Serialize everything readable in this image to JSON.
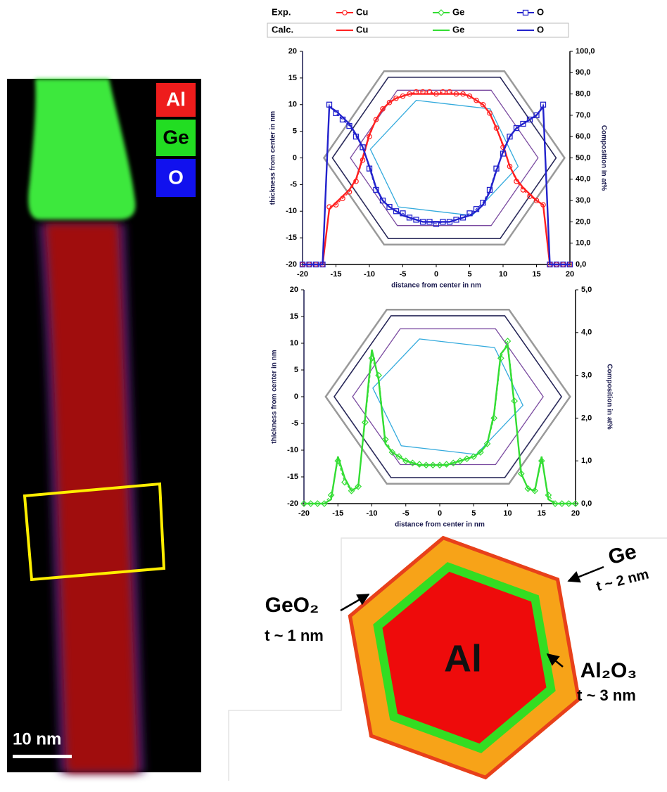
{
  "chart_data": [
    {
      "type": "line",
      "x": [
        -20,
        -19,
        -18,
        -17,
        -16,
        -15,
        -14,
        -13,
        -12,
        -11,
        -10,
        -9,
        -8,
        -7,
        -6,
        -5,
        -4,
        -3,
        -2,
        -1,
        0,
        1,
        2,
        3,
        4,
        5,
        6,
        7,
        8,
        9,
        10,
        11,
        12,
        13,
        14,
        15,
        16,
        17,
        18,
        19,
        20
      ],
      "xlabel": "distance from center in nm",
      "ylabel": "thickness from center in nm",
      "y2label": "Composition in at%",
      "xlim": [
        -20,
        20
      ],
      "xticks": [
        -20,
        -15,
        -10,
        -5,
        0,
        5,
        10,
        15,
        20
      ],
      "ylim": [
        -20,
        20
      ],
      "yticks": [
        -20,
        -15,
        -10,
        -5,
        0,
        5,
        10,
        15,
        20
      ],
      "y2lim": [
        0,
        100
      ],
      "y2ticks": [
        {
          "value": 0,
          "label": "0,0"
        },
        {
          "value": 10,
          "label": "10,0"
        },
        {
          "value": 20,
          "label": "20,0"
        },
        {
          "value": 30,
          "label": "30,0"
        },
        {
          "value": 40,
          "label": "40,0"
        },
        {
          "value": 50,
          "label": "50,0"
        },
        {
          "value": 60,
          "label": "60,0"
        },
        {
          "value": 70,
          "label": "70,0"
        },
        {
          "value": 80,
          "label": "80,0"
        },
        {
          "value": 90,
          "label": "90,0"
        },
        {
          "value": 100,
          "label": "100,0"
        }
      ],
      "series": [
        {
          "name": "Cu",
          "color": "#ff2020",
          "marker": "circle",
          "dashed": true,
          "axis": "y2",
          "values": [
            0,
            0,
            0,
            0,
            27,
            28,
            31,
            34,
            39,
            49,
            60,
            68,
            73,
            76,
            78,
            79,
            80,
            81,
            81,
            81,
            80,
            81,
            81,
            80,
            80,
            79,
            77,
            75,
            71,
            64,
            55,
            46,
            39,
            35,
            32,
            30,
            28,
            0,
            0,
            0,
            0
          ]
        },
        {
          "name": "Cu",
          "color": "#ff2020",
          "marker": "none",
          "dashed": false,
          "axis": "y2",
          "values": [
            0,
            0,
            0,
            0,
            26,
            29,
            32,
            35,
            40,
            50,
            61,
            68,
            73,
            76,
            78,
            79,
            80,
            80,
            80,
            80,
            80,
            80,
            80,
            80,
            80,
            79,
            77,
            75,
            71,
            64,
            56,
            46,
            40,
            36,
            33,
            30,
            28,
            0,
            0,
            0,
            0
          ]
        },
        {
          "name": "O",
          "color": "#2222cc",
          "marker": "square",
          "dashed": true,
          "axis": "y2",
          "values": [
            0,
            0,
            0,
            0,
            75,
            71,
            68,
            65,
            60,
            55,
            45,
            35,
            30,
            27,
            25,
            24,
            22,
            21,
            20,
            20,
            19,
            20,
            20,
            21,
            22,
            24,
            26,
            29,
            35,
            45,
            52,
            60,
            64,
            66,
            68,
            70,
            75,
            0,
            0,
            0,
            0
          ]
        },
        {
          "name": "O",
          "color": "#2222cc",
          "marker": "none",
          "dashed": false,
          "axis": "y2",
          "values": [
            0,
            0,
            0,
            0,
            74,
            72,
            69,
            66,
            61,
            55,
            46,
            36,
            30,
            27,
            25,
            23,
            22,
            21,
            20,
            20,
            20,
            20,
            20,
            21,
            22,
            23,
            25,
            28,
            34,
            44,
            53,
            60,
            64,
            66,
            68,
            70,
            74,
            0,
            0,
            0,
            0
          ]
        }
      ]
    },
    {
      "type": "line",
      "x": [
        -20,
        -19,
        -18,
        -17,
        -16,
        -15,
        -14,
        -13,
        -12,
        -11,
        -10,
        -9,
        -8,
        -7,
        -6,
        -5,
        -4,
        -3,
        -2,
        -1,
        0,
        1,
        2,
        3,
        4,
        5,
        6,
        7,
        8,
        9,
        10,
        11,
        12,
        13,
        14,
        15,
        16,
        17,
        18,
        19,
        20
      ],
      "xlabel": "distance from center in nm",
      "ylabel": "thickness from center in nm",
      "y2label": "Composition in at%",
      "xlim": [
        -20,
        20
      ],
      "xticks": [
        -20,
        -15,
        -10,
        -5,
        0,
        5,
        10,
        15,
        20
      ],
      "ylim": [
        -20,
        20
      ],
      "yticks": [
        -20,
        -15,
        -10,
        -5,
        0,
        5,
        10,
        15,
        20
      ],
      "y2lim": [
        0,
        5
      ],
      "y2ticks": [
        {
          "value": 0,
          "label": "0,0"
        },
        {
          "value": 1,
          "label": "1,0"
        },
        {
          "value": 2,
          "label": "2,0"
        },
        {
          "value": 3,
          "label": "3,0"
        },
        {
          "value": 4,
          "label": "4,0"
        },
        {
          "value": 5,
          "label": "5,0"
        }
      ],
      "series": [
        {
          "name": "Ge",
          "color": "#33dd33",
          "marker": "diamond",
          "dashed": true,
          "axis": "y2",
          "values": [
            0,
            0,
            0,
            0,
            0.2,
            1.0,
            0.5,
            0.3,
            0.4,
            1.9,
            3.4,
            3.0,
            1.5,
            1.2,
            1.1,
            1.0,
            0.95,
            0.92,
            0.9,
            0.9,
            0.9,
            0.92,
            0.95,
            1.0,
            1.05,
            1.1,
            1.2,
            1.4,
            2.0,
            3.4,
            3.8,
            2.4,
            0.7,
            0.35,
            0.3,
            1.0,
            0.2,
            0,
            0,
            0,
            0
          ]
        },
        {
          "name": "Ge",
          "color": "#33dd33",
          "marker": "none",
          "dashed": false,
          "axis": "y2",
          "values": [
            0,
            0,
            0,
            0,
            0.1,
            1.1,
            0.6,
            0.3,
            0.4,
            2.0,
            3.6,
            2.9,
            1.4,
            1.2,
            1.1,
            1.0,
            0.95,
            0.9,
            0.9,
            0.9,
            0.9,
            0.9,
            0.95,
            1.0,
            1.05,
            1.1,
            1.2,
            1.4,
            2.1,
            3.5,
            3.7,
            2.3,
            0.7,
            0.35,
            0.3,
            1.1,
            0.1,
            0,
            0,
            0,
            0
          ]
        }
      ]
    }
  ],
  "legend": {
    "rows": [
      "Exp.",
      "Calc."
    ]
  },
  "image": {
    "labels": [
      "Al",
      "Ge",
      "O"
    ],
    "scale_bar": "10 nm"
  },
  "diagram": {
    "core": "Al",
    "layers": [
      {
        "name": "Ge",
        "thickness": "t ~ 2 nm"
      },
      {
        "name": "Al₂O₃",
        "thickness": "t ~ 3 nm"
      },
      {
        "name": "GeO₂",
        "thickness": "t ~ 1 nm"
      }
    ]
  }
}
